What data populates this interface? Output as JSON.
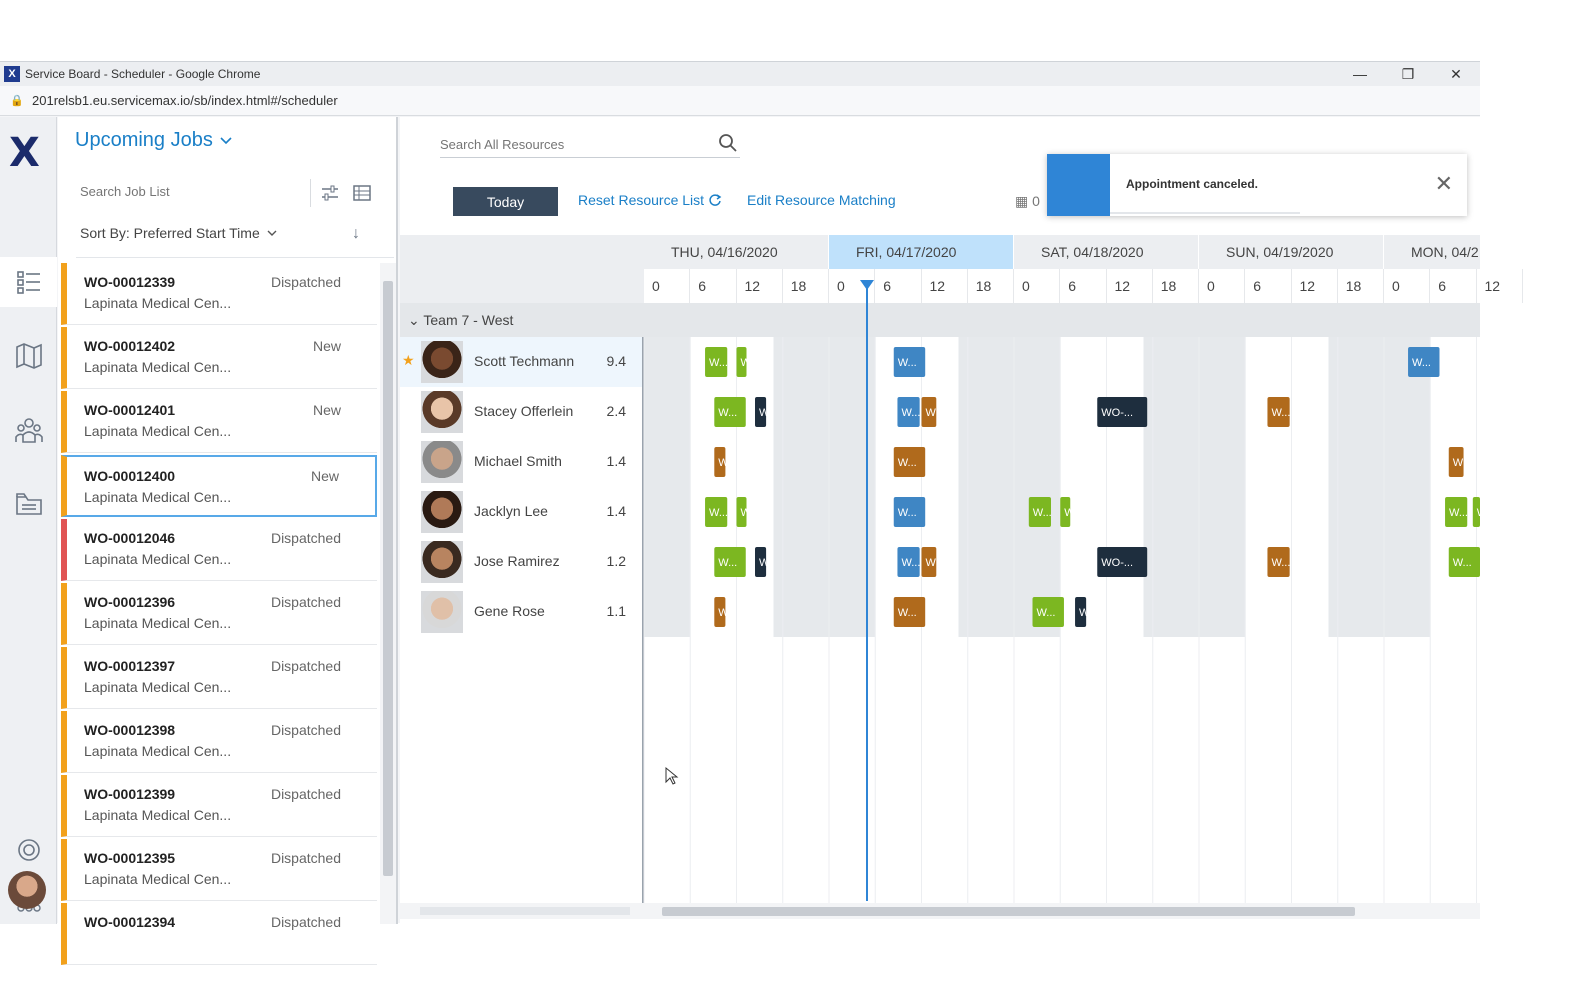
{
  "window": {
    "title": "Service Board - Scheduler - Google Chrome",
    "app_badge": "X",
    "url": "201relsb1.eu.servicemax.io/sb/index.html#/scheduler",
    "controls": [
      "—",
      "❐",
      "✕"
    ]
  },
  "rail": {
    "logo": "X",
    "items": [
      {
        "name": "job-list-icon"
      },
      {
        "name": "map-icon"
      },
      {
        "name": "team-icon"
      },
      {
        "name": "folder-icon"
      },
      {
        "name": "settings-icon"
      },
      {
        "name": "apps-grid-icon"
      }
    ]
  },
  "joblist": {
    "title": "Upcoming Jobs",
    "search_placeholder": "Search Job List",
    "sort_label": "Sort By: Preferred Start Time",
    "sort_dir": "↓",
    "jobs": [
      {
        "wo": "WO-00012339",
        "loc": "Lapinata Medical Cen...",
        "status": "Dispatched",
        "color": "#f2a11c"
      },
      {
        "wo": "WO-00012402",
        "loc": "Lapinata Medical Cen...",
        "status": "New",
        "color": "#f2a11c"
      },
      {
        "wo": "WO-00012401",
        "loc": "Lapinata Medical Cen...",
        "status": "New",
        "color": "#f2a11c"
      },
      {
        "wo": "WO-00012400",
        "loc": "Lapinata Medical Cen...",
        "status": "New",
        "color": "#f2a11c"
      },
      {
        "wo": "WO-00012046",
        "loc": "Lapinata Medical Cen...",
        "status": "Dispatched",
        "color": "#e05454"
      },
      {
        "wo": "WO-00012396",
        "loc": "Lapinata Medical Cen...",
        "status": "Dispatched",
        "color": "#f2a11c"
      },
      {
        "wo": "WO-00012397",
        "loc": "Lapinata Medical Cen...",
        "status": "Dispatched",
        "color": "#f2a11c"
      },
      {
        "wo": "WO-00012398",
        "loc": "Lapinata Medical Cen...",
        "status": "Dispatched",
        "color": "#f2a11c"
      },
      {
        "wo": "WO-00012399",
        "loc": "Lapinata Medical Cen...",
        "status": "Dispatched",
        "color": "#f2a11c"
      },
      {
        "wo": "WO-00012395",
        "loc": "Lapinata Medical Cen...",
        "status": "Dispatched",
        "color": "#f2a11c"
      },
      {
        "wo": "WO-00012394",
        "loc": "",
        "status": "Dispatched",
        "color": "#f2a11c"
      }
    ]
  },
  "scheduler": {
    "search_placeholder": "Search All Resources",
    "today_label": "Today",
    "reset_label": "Reset Resource List",
    "edit_label": "Edit Resource Matching",
    "calendar_label": "0",
    "toast": "Appointment canceled.",
    "days": [
      "THU, 04/16/2020",
      "FRI, 04/17/2020",
      "SAT, 04/18/2020",
      "SUN, 04/19/2020",
      "MON, 04/2"
    ],
    "hours": [
      "0",
      "6",
      "12",
      "18"
    ],
    "team": "Team 7 - West",
    "resources": [
      {
        "name": "Scott Techmann",
        "score": "9.4",
        "starred": true
      },
      {
        "name": "Stacey Offerlein",
        "score": "2.4",
        "starred": false
      },
      {
        "name": "Michael Smith",
        "score": "1.4",
        "starred": false
      },
      {
        "name": "Jacklyn Lee",
        "score": "1.4",
        "starred": false
      },
      {
        "name": "Jose Ramirez",
        "score": "1.2",
        "starred": false
      },
      {
        "name": "Gene Rose",
        "score": "1.1",
        "starred": false
      }
    ],
    "colors": {
      "green": "#7cb721",
      "blue": "#3f86c4",
      "brown": "#b06a1c",
      "navy": "#1e2e3e"
    },
    "events": [
      {
        "row": 0,
        "day_pos": 0.33,
        "len": 0.12,
        "color": "green",
        "label": "W..."
      },
      {
        "row": 0,
        "day_pos": 0.5,
        "len": 0.04,
        "color": "green",
        "label": "W"
      },
      {
        "row": 0,
        "day_pos": 1.35,
        "len": 0.17,
        "color": "blue",
        "label": "W..."
      },
      {
        "row": 0,
        "day_pos": 4.13,
        "len": 0.17,
        "color": "blue",
        "label": "W..."
      },
      {
        "row": 1,
        "day_pos": 0.38,
        "len": 0.17,
        "color": "green",
        "label": "W..."
      },
      {
        "row": 1,
        "day_pos": 0.6,
        "len": 0.06,
        "color": "navy",
        "label": "W"
      },
      {
        "row": 1,
        "day_pos": 1.37,
        "len": 0.12,
        "color": "blue",
        "label": "W..."
      },
      {
        "row": 1,
        "day_pos": 1.5,
        "len": 0.08,
        "color": "brown",
        "label": "W"
      },
      {
        "row": 1,
        "day_pos": 2.45,
        "len": 0.27,
        "color": "navy",
        "label": "WO-..."
      },
      {
        "row": 1,
        "day_pos": 3.37,
        "len": 0.12,
        "color": "brown",
        "label": "W..."
      },
      {
        "row": 2,
        "day_pos": 0.38,
        "len": 0.06,
        "color": "brown",
        "label": "W"
      },
      {
        "row": 2,
        "day_pos": 1.35,
        "len": 0.17,
        "color": "brown",
        "label": "W..."
      },
      {
        "row": 2,
        "day_pos": 4.35,
        "len": 0.08,
        "color": "brown",
        "label": "W"
      },
      {
        "row": 3,
        "day_pos": 0.33,
        "len": 0.12,
        "color": "green",
        "label": "W..."
      },
      {
        "row": 3,
        "day_pos": 0.5,
        "len": 0.04,
        "color": "green",
        "label": "W"
      },
      {
        "row": 3,
        "day_pos": 1.35,
        "len": 0.17,
        "color": "blue",
        "label": "W..."
      },
      {
        "row": 3,
        "day_pos": 2.08,
        "len": 0.12,
        "color": "green",
        "label": "W..."
      },
      {
        "row": 3,
        "day_pos": 2.25,
        "len": 0.04,
        "color": "green",
        "label": "W"
      },
      {
        "row": 3,
        "day_pos": 4.33,
        "len": 0.12,
        "color": "green",
        "label": "W..."
      },
      {
        "row": 3,
        "day_pos": 4.48,
        "len": 0.04,
        "color": "green",
        "label": "W"
      },
      {
        "row": 4,
        "day_pos": 0.38,
        "len": 0.17,
        "color": "green",
        "label": "W..."
      },
      {
        "row": 4,
        "day_pos": 0.6,
        "len": 0.06,
        "color": "navy",
        "label": "W"
      },
      {
        "row": 4,
        "day_pos": 1.37,
        "len": 0.12,
        "color": "blue",
        "label": "W..."
      },
      {
        "row": 4,
        "day_pos": 1.5,
        "len": 0.08,
        "color": "brown",
        "label": "W"
      },
      {
        "row": 4,
        "day_pos": 2.45,
        "len": 0.27,
        "color": "navy",
        "label": "WO-..."
      },
      {
        "row": 4,
        "day_pos": 3.37,
        "len": 0.12,
        "color": "brown",
        "label": "W..."
      },
      {
        "row": 4,
        "day_pos": 4.35,
        "len": 0.17,
        "color": "green",
        "label": "W..."
      },
      {
        "row": 5,
        "day_pos": 0.38,
        "len": 0.06,
        "color": "brown",
        "label": "W"
      },
      {
        "row": 5,
        "day_pos": 1.35,
        "len": 0.17,
        "color": "brown",
        "label": "W..."
      },
      {
        "row": 5,
        "day_pos": 2.1,
        "len": 0.17,
        "color": "green",
        "label": "W..."
      },
      {
        "row": 5,
        "day_pos": 2.33,
        "len": 0.06,
        "color": "navy",
        "label": "W"
      }
    ]
  }
}
